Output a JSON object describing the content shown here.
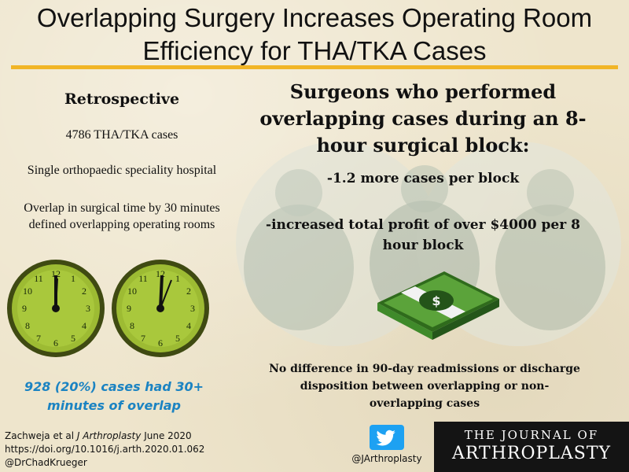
{
  "title": "Overlapping Surgery Increases Operating Room Efficiency for THA/TKA Cases",
  "left": {
    "heading": "Retrospective",
    "line1": "4786 THA/TKA cases",
    "line2": "Single orthopaedic speciality hospital",
    "line3": "Overlap in surgical time by 30 minutes defined overlapping operating rooms",
    "clock_numbers": [
      "12",
      "1",
      "2",
      "3",
      "4",
      "5",
      "6",
      "7",
      "8",
      "9",
      "10",
      "11"
    ],
    "overlap_note": "928 (20%) cases had 30+ minutes of overlap"
  },
  "right": {
    "heading": "Surgeons who performed overlapping cases during an 8-hour surgical block:",
    "bullet1": "-1.2 more cases per block",
    "bullet2": "-increased total profit of over $4000 per 8 hour block",
    "note": "No difference in 90-day readmissions or discharge disposition between overlapping or non-overlapping cases"
  },
  "citation": {
    "authors": "Zachweja et al",
    "journal": "J Arthroplasty",
    "date": "June 2020",
    "doi": "https://doi.org/10.1016/j.arth.2020.01.062",
    "handle": "@DrChadKrueger"
  },
  "branding": {
    "twitter_handle": "@JArthroplasty",
    "journal_line1": "THE JOURNAL OF",
    "journal_line2": "ARTHROPLASTY"
  },
  "colors": {
    "accent_rule": "#f1b526",
    "overlap_note": "#1b83c2",
    "clock_face": "#9dbb33",
    "twitter": "#1da1f2"
  },
  "icons": [
    "clock-icon",
    "money-icon",
    "twitter-bird-icon"
  ]
}
